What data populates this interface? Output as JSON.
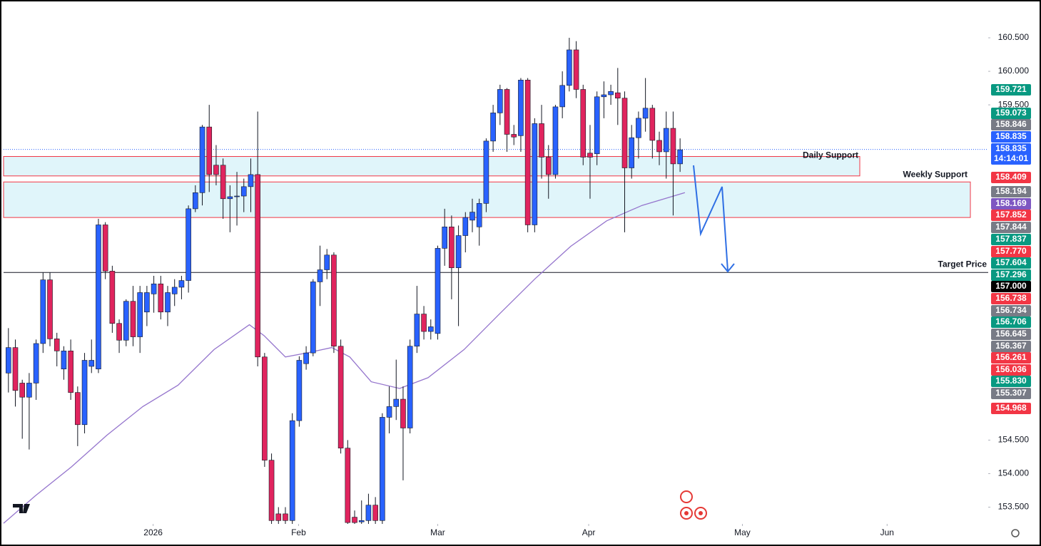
{
  "chart_data": {
    "type": "candlestick",
    "open": [
      155.5,
      155.88,
      155.35,
      155.14,
      155.35,
      155.94,
      156.89,
      156.01,
      155.56,
      155.83,
      155.21,
      154.73,
      155.6,
      155.56,
      157.71,
      157.02,
      156.24,
      155.99,
      156.57,
      156.04,
      156.41,
      156.68,
      156.83,
      156.41,
      156.68,
      156.78,
      156.88,
      157.95,
      158.19,
      159.17,
      158.6,
      158.6,
      158.1,
      158.13,
      158.14,
      158.28,
      158.46,
      155.74,
      154.2,
      153.4,
      153.4,
      153.3,
      154.79,
      155.64,
      155.8,
      156.86,
      157.04,
      157.26,
      155.9,
      154.38,
      153.35,
      153.28,
      153.3,
      153.53,
      153.3,
      154.84,
      155.0,
      155.11,
      154.68,
      155.9,
      156.38,
      156.12,
      156.09,
      157.36,
      157.68,
      157.07,
      157.55,
      157.78,
      157.68,
      158.03,
      158.96,
      159.38,
      159.73,
      159.06,
      159.04,
      159.87,
      157.71,
      159.22,
      158.72,
      158.46,
      159.47,
      159.79,
      160.32,
      159.73,
      158.78,
      158.77,
      159.62,
      159.65,
      159.68,
      159.6,
      158.56,
      159.01,
      159.3,
      159.45,
      158.97,
      158.8,
      159.15,
      158.62
    ],
    "high": [
      156.17,
      156.0,
      155.4,
      155.5,
      156.0,
      157.0,
      157.0,
      156.1,
      155.9,
      156.0,
      155.3,
      155.8,
      156.0,
      157.8,
      157.75,
      157.1,
      156.3,
      156.6,
      156.8,
      156.8,
      156.8,
      156.95,
      156.95,
      156.8,
      156.9,
      156.95,
      158.0,
      158.3,
      159.2,
      159.5,
      158.9,
      158.7,
      158.3,
      158.5,
      158.4,
      158.7,
      159.4,
      155.8,
      154.3,
      153.5,
      153.5,
      154.9,
      155.75,
      155.9,
      156.9,
      157.4,
      157.35,
      157.3,
      156.0,
      154.5,
      153.45,
      153.6,
      153.7,
      153.65,
      154.9,
      155.3,
      155.7,
      155.3,
      156.0,
      156.8,
      156.5,
      156.3,
      157.4,
      157.95,
      157.85,
      157.7,
      157.9,
      158.1,
      158.1,
      159.0,
      159.5,
      159.8,
      159.75,
      159.2,
      159.9,
      159.9,
      159.3,
      159.5,
      158.9,
      159.5,
      160.0,
      160.5,
      160.45,
      159.8,
      159.2,
      159.7,
      159.85,
      159.8,
      160.05,
      159.7,
      159.2,
      159.4,
      159.9,
      159.5,
      159.1,
      159.4,
      159.4,
      159.0
    ],
    "low": [
      155.21,
      155.0,
      154.52,
      154.36,
      155.1,
      155.8,
      155.9,
      155.6,
      155.4,
      155.1,
      154.41,
      154.6,
      155.5,
      155.5,
      156.9,
      156.1,
      155.8,
      155.9,
      155.9,
      155.8,
      156.2,
      156.4,
      156.3,
      156.2,
      156.5,
      156.6,
      156.7,
      157.9,
      158.0,
      158.2,
      158.3,
      157.8,
      157.6,
      157.7,
      157.9,
      157.9,
      155.6,
      154.1,
      153.25,
      153.25,
      153.25,
      153.25,
      154.7,
      155.55,
      155.75,
      156.5,
      156.9,
      155.8,
      154.3,
      153.25,
      153.25,
      153.25,
      153.25,
      153.25,
      153.25,
      154.6,
      154.8,
      153.9,
      154.6,
      155.8,
      156.0,
      156.0,
      156.0,
      157.1,
      156.6,
      156.2,
      157.3,
      157.6,
      157.4,
      157.9,
      158.8,
      159.2,
      158.8,
      158.9,
      158.8,
      157.6,
      157.6,
      158.4,
      158.1,
      158.4,
      159.3,
      159.7,
      159.6,
      158.6,
      158.1,
      158.6,
      159.3,
      159.5,
      159.2,
      157.6,
      158.4,
      158.7,
      159.1,
      158.7,
      158.6,
      158.4,
      157.85,
      158.5
    ],
    "close": [
      155.88,
      155.24,
      155.14,
      155.35,
      155.94,
      156.89,
      156.01,
      155.83,
      155.83,
      155.21,
      154.73,
      155.69,
      155.69,
      157.71,
      157.02,
      156.24,
      155.99,
      156.57,
      156.04,
      156.7,
      156.7,
      156.83,
      156.41,
      156.7,
      156.78,
      156.88,
      157.95,
      158.19,
      159.17,
      158.46,
      158.46,
      158.1,
      158.13,
      158.14,
      158.28,
      158.46,
      155.74,
      154.2,
      153.3,
      153.3,
      153.3,
      154.79,
      155.69,
      155.8,
      156.86,
      157.04,
      157.26,
      155.9,
      154.38,
      153.27,
      153.27,
      153.3,
      153.53,
      153.3,
      154.84,
      155.0,
      155.11,
      154.68,
      155.9,
      156.38,
      156.12,
      156.19,
      157.36,
      157.68,
      157.07,
      157.55,
      157.82,
      157.9,
      158.03,
      158.96,
      159.38,
      159.73,
      159.06,
      159.02,
      159.87,
      157.71,
      159.22,
      158.72,
      158.46,
      159.47,
      159.79,
      160.32,
      159.73,
      158.72,
      158.72,
      159.62,
      159.65,
      159.7,
      159.6,
      158.56,
      159.01,
      159.3,
      159.45,
      158.97,
      158.8,
      159.15,
      158.62,
      158.83
    ],
    "up_color": "#2962ff",
    "down_color": "#e0245e",
    "wick_color": "#131722",
    "ma": {
      "x": [
        -0.7,
        3.9,
        9.1,
        14.2,
        19.4,
        24.5,
        29.7,
        34.8,
        36.9,
        40,
        43.1,
        46.7,
        49.3,
        52.4,
        56.5,
        60.6,
        65.8,
        70.9,
        76.1,
        81.2,
        86.4,
        91.5,
        97.7
      ],
      "values": [
        153.26,
        153.67,
        154.1,
        154.57,
        155.0,
        155.32,
        155.85,
        156.22,
        156.06,
        155.74,
        155.8,
        155.88,
        155.74,
        155.37,
        155.27,
        155.43,
        155.85,
        156.38,
        156.91,
        157.39,
        157.77,
        158.0,
        158.19
      ],
      "color": "#9575cd"
    },
    "xlim": [
      -0.7,
      141.5
    ],
    "xticks": [
      {
        "value": 20.9,
        "label": "2026"
      },
      {
        "value": 41.9,
        "label": "Feb"
      },
      {
        "value": 62.0,
        "label": "Mar"
      },
      {
        "value": 83.8,
        "label": "Apr"
      },
      {
        "value": 106.0,
        "label": "May"
      },
      {
        "value": 126.9,
        "label": "Jun"
      }
    ],
    "ylim": [
      153.25,
      161.0
    ],
    "yticks": [
      {
        "value": 153.5,
        "label": "153.500"
      },
      {
        "value": 154,
        "label": "154.000"
      },
      {
        "value": 154.5,
        "label": "154.500"
      },
      {
        "value": 159.5,
        "label": "159.500"
      },
      {
        "value": 160,
        "label": "160.000"
      },
      {
        "value": 160.5,
        "label": "160.500"
      }
    ],
    "zones": [
      {
        "label": "Daily Support",
        "top": 158.73,
        "bottom": 158.44
      },
      {
        "label": "Weekly Support",
        "top": 158.35,
        "bottom": 157.82
      }
    ],
    "current_price": 158.835,
    "target": {
      "label": "Target Price",
      "value": 157.0
    },
    "countdown": "14:14:01",
    "price_labels": [
      {
        "label": "159.721",
        "color": "#089981"
      },
      {
        "label": "159.073",
        "color": "#089981"
      },
      {
        "label": "158.846",
        "color": "#787b86"
      },
      {
        "label": "158.835",
        "color": "#2962ff"
      },
      {
        "label": "158.835",
        "color": "#2962ff"
      },
      {
        "label": "158.409",
        "color": "#f23645"
      },
      {
        "label": "158.194",
        "color": "#787b86"
      },
      {
        "label": "158.169",
        "color": "#7e57c2"
      },
      {
        "label": "157.852",
        "color": "#f23645"
      },
      {
        "label": "157.844",
        "color": "#787b86"
      },
      {
        "label": "157.837",
        "color": "#089981"
      },
      {
        "label": "157.770",
        "color": "#f23645"
      },
      {
        "label": "157.604",
        "color": "#089981"
      },
      {
        "label": "157.296",
        "color": "#089981"
      },
      {
        "label": "157.000",
        "color": "#000000"
      },
      {
        "label": "156.738",
        "color": "#f23645"
      },
      {
        "label": "156.734",
        "color": "#787b86"
      },
      {
        "label": "156.706",
        "color": "#089981"
      },
      {
        "label": "156.645",
        "color": "#787b86"
      },
      {
        "label": "156.367",
        "color": "#787b86"
      },
      {
        "label": "156.261",
        "color": "#f23645"
      },
      {
        "label": "156.036",
        "color": "#f23645"
      },
      {
        "label": "155.830",
        "color": "#089981"
      },
      {
        "label": "155.307",
        "color": "#787b86"
      },
      {
        "label": "154.968",
        "color": "#f23645"
      }
    ]
  }
}
